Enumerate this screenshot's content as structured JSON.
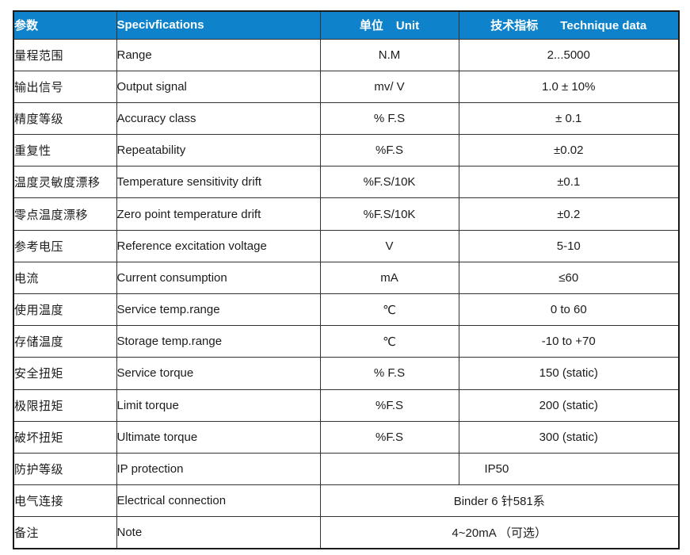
{
  "table": {
    "accent_color": "#0E83CB",
    "header": {
      "param_zh": "参数",
      "spec_en": "Specivfications",
      "unit_zh": "单位",
      "unit_en": "Unit",
      "data_zh": "技术指标",
      "data_en": "Technique data"
    },
    "rows": [
      {
        "param": "量程范围",
        "spec": "Range",
        "unit": "N.M",
        "value": "2...5000"
      },
      {
        "param": "输出信号",
        "spec": "Output signal",
        "unit": "mv/ V",
        "value": "1.0 ± 10%"
      },
      {
        "param": "精度等级",
        "spec": "Accuracy class",
        "unit": "% F.S",
        "value": "± 0.1"
      },
      {
        "param": "重复性",
        "spec": "Repeatability",
        "unit": "%F.S",
        "value": "±0.02"
      },
      {
        "param": "温度灵敏度漂移",
        "spec": "Temperature sensitivity drift",
        "unit": "%F.S/10K",
        "value": "±0.1"
      },
      {
        "param": "零点温度漂移",
        "spec": "Zero point temperature drift",
        "unit": "%F.S/10K",
        "value": "±0.2"
      },
      {
        "param": "参考电压",
        "spec": "Reference excitation voltage",
        "unit": "V",
        "value": "5-10"
      },
      {
        "param": "电流",
        "spec": "Current consumption",
        "unit": "mA",
        "value": "≤60"
      },
      {
        "param": "使用温度",
        "spec": "Service temp.range",
        "unit": "℃",
        "value": "0 to 60"
      },
      {
        "param": "存储温度",
        "spec": "Storage temp.range",
        "unit": "℃",
        "value": "-10 to +70"
      },
      {
        "param": "安全扭矩",
        "spec": "Service torque",
        "unit": "% F.S",
        "value": "150 (static)"
      },
      {
        "param": "极限扭矩",
        "spec": "Limit torque",
        "unit": "%F.S",
        "value": "200 (static)"
      },
      {
        "param": "破坏扭矩",
        "spec": "Ultimate torque",
        "unit": "%F.S",
        "value": "300 (static)"
      },
      {
        "param": "防护等级",
        "spec": "IP protection",
        "unit": "",
        "value": "IP50",
        "value_align": "left"
      },
      {
        "param": "电气连接",
        "spec": "Electrical connection",
        "merged": true,
        "value": "Binder 6 针581系"
      },
      {
        "param": "备注",
        "spec": "Note",
        "merged": true,
        "value": "4~20mA （可选）"
      }
    ]
  }
}
